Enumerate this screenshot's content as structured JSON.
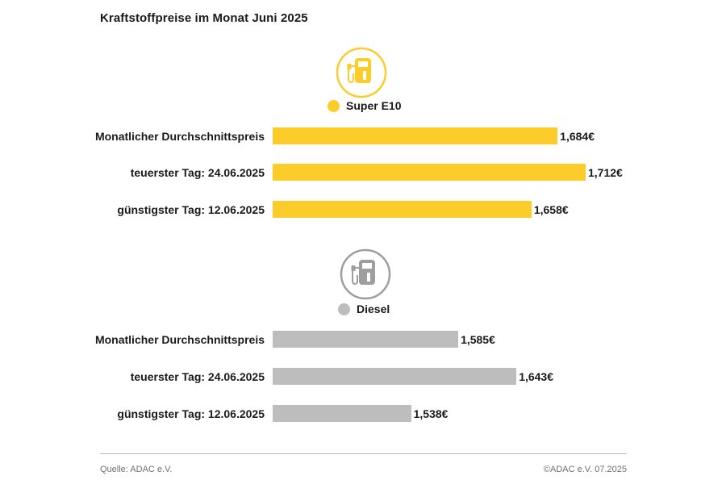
{
  "title": "Kraftstoffpreise im Monat Juni 2025",
  "colors": {
    "super_e10": "#FCCC2B",
    "diesel": "#BDBDBD",
    "icon_diesel": "#9E9E9E"
  },
  "icons": {
    "super_e10": "fuel-pump-icon",
    "diesel": "fuel-pump-icon"
  },
  "chart_data": [
    {
      "type": "bar",
      "orientation": "horizontal",
      "series": [
        {
          "name": "Super E10",
          "values": [
            1.684,
            1.712,
            1.658
          ]
        }
      ],
      "categories": [
        "Monatlicher Durchschnittspreis",
        "teuerster Tag: 24.06.2025",
        "günstigster Tag: 12.06.2025"
      ],
      "value_labels": [
        "1,684€",
        "1,712€",
        "1,658€"
      ],
      "xlim": [
        1.4,
        1.712
      ],
      "legend_position": "top-center"
    },
    {
      "type": "bar",
      "orientation": "horizontal",
      "series": [
        {
          "name": "Diesel",
          "values": [
            1.585,
            1.643,
            1.538
          ]
        }
      ],
      "categories": [
        "Monatlicher Durchschnittspreis",
        "teuerster Tag: 24.06.2025",
        "günstigster Tag: 12.06.2025"
      ],
      "value_labels": [
        "1,585€",
        "1,643€",
        "1,538€"
      ],
      "xlim": [
        1.4,
        1.712
      ],
      "legend_position": "top-center"
    }
  ],
  "footer": {
    "source": "Quelle: ADAC e.V.",
    "copyright": "©ADAC e.V. 07.2025"
  }
}
